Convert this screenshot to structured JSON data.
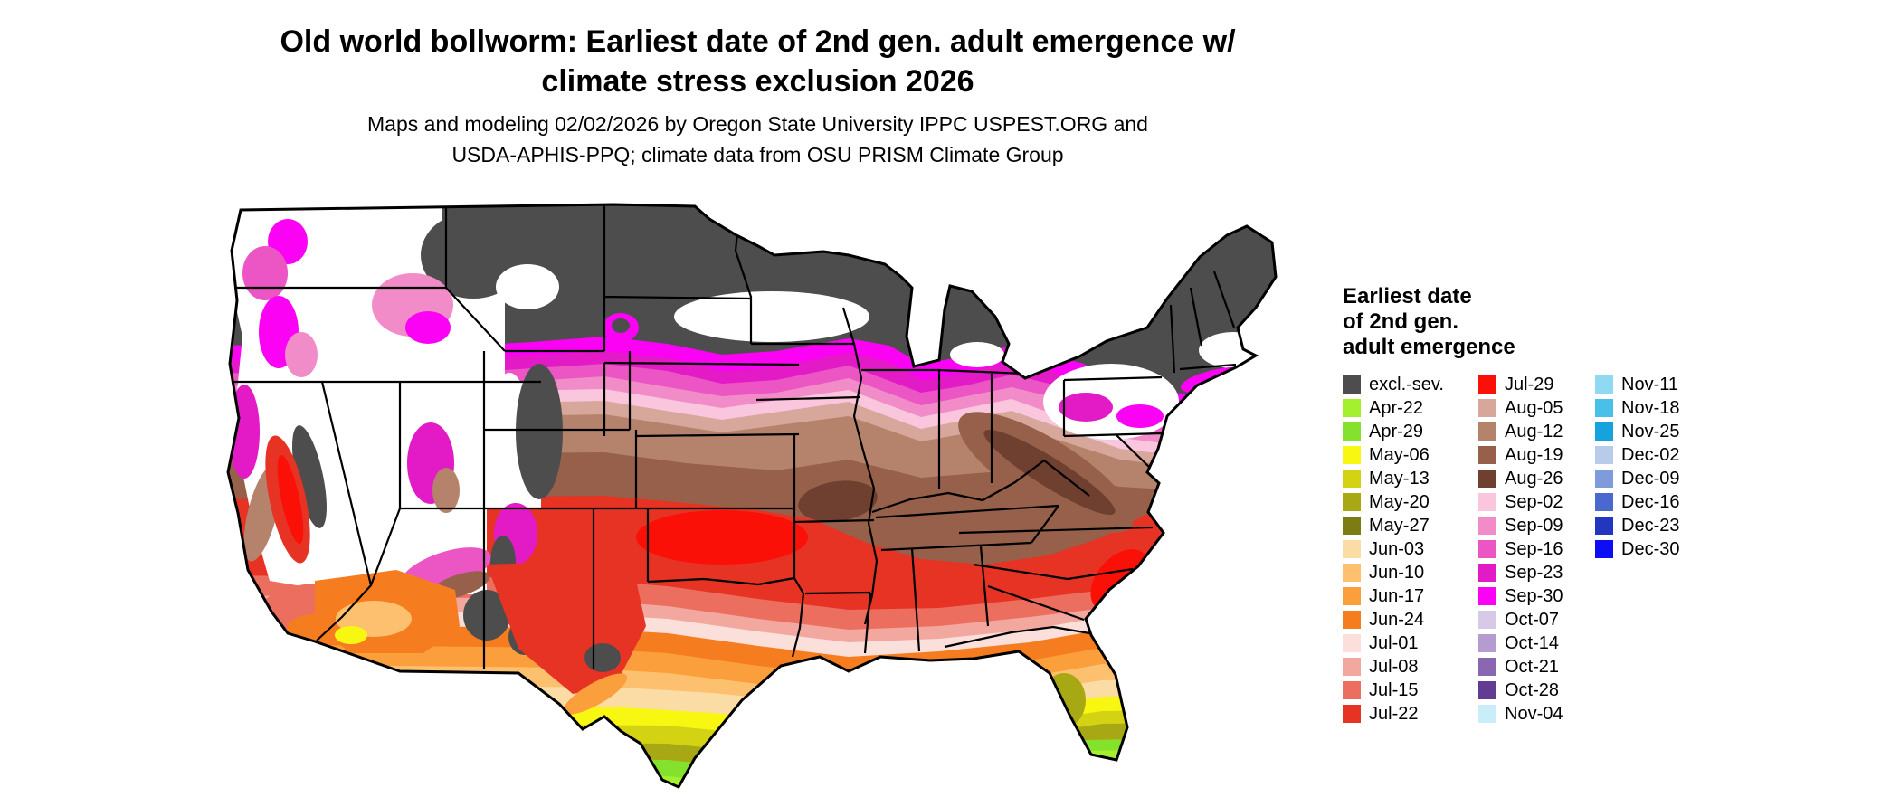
{
  "title": {
    "line1": "Old world bollworm: Earliest date of 2nd gen. adult emergence w/",
    "line2": "climate stress exclusion 2026"
  },
  "subtitle": {
    "line1": "Maps and modeling 02/02/2026 by Oregon State University IPPC USPEST.ORG and",
    "line2": "USDA-APHIS-PPQ; climate data from OSU PRISM Climate Group"
  },
  "map": {
    "description": "Choropleth map of the contiguous United States shaded by earliest date of 2nd generation adult emergence; dark gray = excluded/severe climate stress, white = no emergence shown",
    "outline_color": "#000000",
    "background_color": "#ffffff"
  },
  "legend": {
    "title_lines": [
      "Earliest date",
      "of 2nd gen.",
      "adult emergence"
    ],
    "columns": [
      [
        {
          "label": "excl.-sev.",
          "color": "#4d4d4d"
        },
        {
          "label": "Apr-22",
          "color": "#a4f02e"
        },
        {
          "label": "Apr-29",
          "color": "#85e22c"
        },
        {
          "label": "May-06",
          "color": "#f7f712"
        },
        {
          "label": "May-13",
          "color": "#d3d313"
        },
        {
          "label": "May-20",
          "color": "#a8a814"
        },
        {
          "label": "May-27",
          "color": "#7c7c15"
        },
        {
          "label": "Jun-03",
          "color": "#fbdca4"
        },
        {
          "label": "Jun-10",
          "color": "#fdc06e"
        },
        {
          "label": "Jun-17",
          "color": "#fb9e3c"
        },
        {
          "label": "Jun-24",
          "color": "#f57d20"
        },
        {
          "label": "Jul-01",
          "color": "#fadfdb"
        },
        {
          "label": "Jul-08",
          "color": "#f2a79f"
        },
        {
          "label": "Jul-15",
          "color": "#ec6e5f"
        },
        {
          "label": "Jul-22",
          "color": "#e63324"
        }
      ],
      [
        {
          "label": "Jul-29",
          "color": "#fa1006"
        },
        {
          "label": "Aug-05",
          "color": "#d6a79a"
        },
        {
          "label": "Aug-12",
          "color": "#b5836c"
        },
        {
          "label": "Aug-19",
          "color": "#96604a"
        },
        {
          "label": "Aug-26",
          "color": "#6f4030"
        },
        {
          "label": "Sep-02",
          "color": "#f9c6de"
        },
        {
          "label": "Sep-09",
          "color": "#f28cc9"
        },
        {
          "label": "Sep-16",
          "color": "#ec55c4"
        },
        {
          "label": "Sep-23",
          "color": "#e21bc6"
        },
        {
          "label": "Sep-30",
          "color": "#fb02f4"
        },
        {
          "label": "Oct-07",
          "color": "#d9c9e8"
        },
        {
          "label": "Oct-14",
          "color": "#b49cd1"
        },
        {
          "label": "Oct-21",
          "color": "#8b67b2"
        },
        {
          "label": "Oct-28",
          "color": "#613c92"
        },
        {
          "label": "Nov-04",
          "color": "#c9eefa"
        }
      ],
      [
        {
          "label": "Nov-11",
          "color": "#8fd9f2"
        },
        {
          "label": "Nov-18",
          "color": "#49c0ea"
        },
        {
          "label": "Nov-25",
          "color": "#16a3dd"
        },
        {
          "label": "Dec-02",
          "color": "#b8cbe9"
        },
        {
          "label": "Dec-09",
          "color": "#7f9bdb"
        },
        {
          "label": "Dec-16",
          "color": "#4a68cd"
        },
        {
          "label": "Dec-23",
          "color": "#2336c0"
        },
        {
          "label": "Dec-30",
          "color": "#0e0ef6"
        }
      ]
    ]
  }
}
